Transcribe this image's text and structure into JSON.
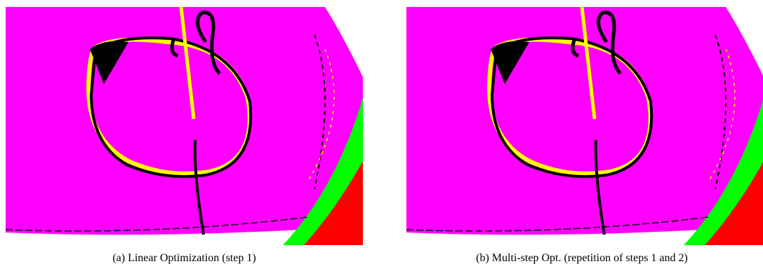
{
  "figures": [
    {
      "caption": "(a) Linear Optimization (step 1)"
    },
    {
      "caption": "(b) Multi-step Opt. (repetition of steps 1 and 2)"
    }
  ]
}
